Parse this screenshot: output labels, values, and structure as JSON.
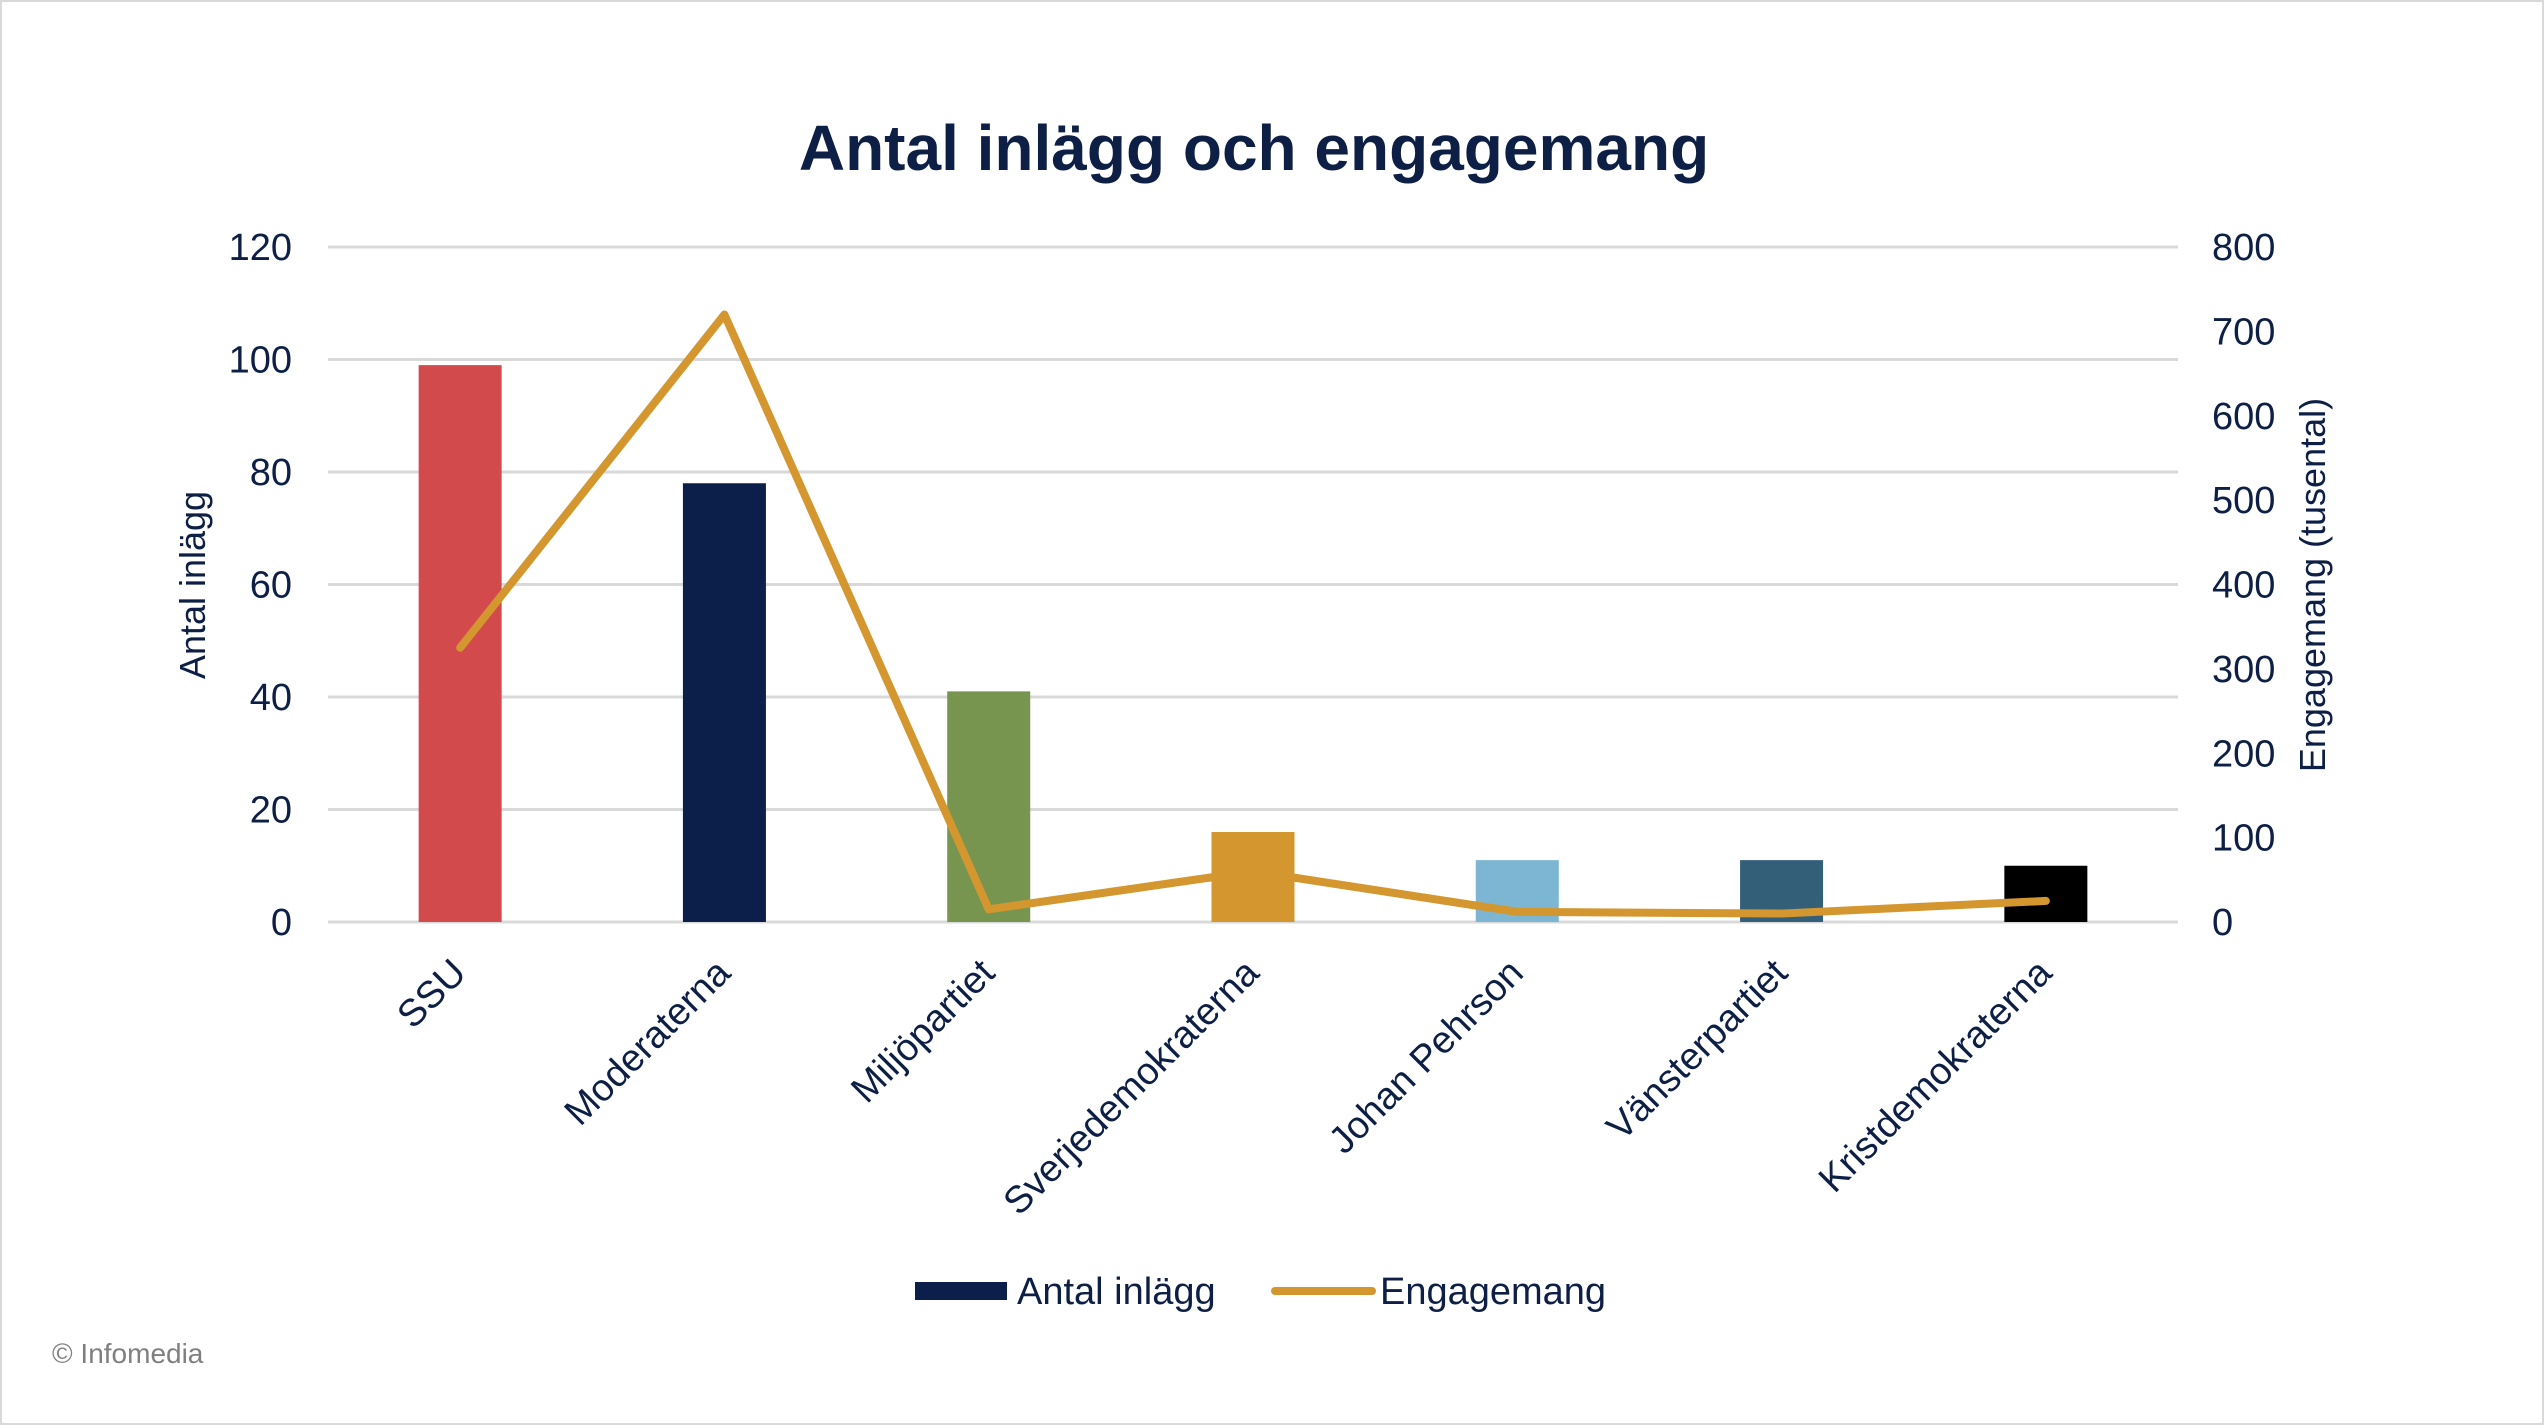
{
  "chart_data": {
    "type": "bar",
    "title": "Antal inlägg och engagemang",
    "categories": [
      "SSU",
      "Moderaterna",
      "Miljöpartiet",
      "Sverjedemokraterna",
      "Johan Pehrson",
      "Vänsterpartiet",
      "Kristdemokraterna"
    ],
    "series": [
      {
        "name": "Antal inlägg",
        "type": "bar",
        "axis": "left",
        "values": [
          99,
          78,
          41,
          16,
          11,
          11,
          10
        ],
        "colors": [
          "#d34a4c",
          "#0c1f4a",
          "#77954e",
          "#d4962f",
          "#7db6d3",
          "#345f78",
          "#000000"
        ],
        "legend_color": "#0c1f4a"
      },
      {
        "name": "Engagemang",
        "type": "line",
        "axis": "right",
        "values": [
          325,
          720,
          15,
          60,
          12,
          10,
          25
        ],
        "color": "#d4962f"
      }
    ],
    "ylabel": "Antal inlägg",
    "y2label": "Engagemang (tusental)",
    "ylim": [
      0,
      120
    ],
    "y2lim": [
      0,
      800
    ],
    "yticks": [
      "0",
      "20",
      "40",
      "60",
      "80",
      "100",
      "120"
    ],
    "y2ticks": [
      "0",
      "100",
      "200",
      "300",
      "400",
      "500",
      "600",
      "700",
      "800"
    ],
    "grid": true,
    "legend_position": "bottom"
  },
  "footer": "© Infomedia"
}
